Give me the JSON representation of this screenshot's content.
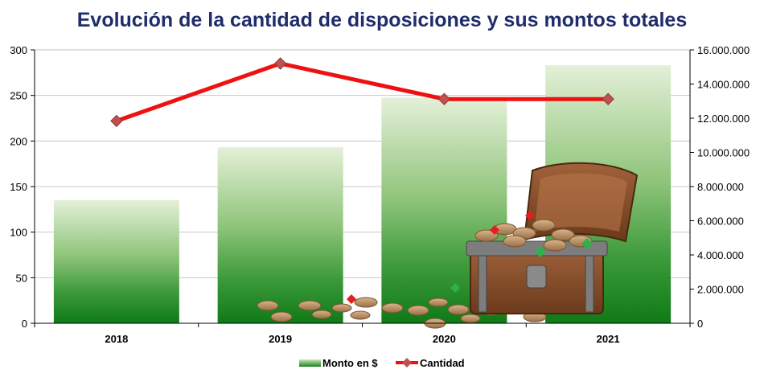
{
  "chart_data": {
    "type": "bar",
    "title": "Evolución de la cantidad de disposiciones y sus montos totales",
    "categories": [
      "2018",
      "2019",
      "2020",
      "2021"
    ],
    "left_axis": {
      "range": [
        0,
        300
      ],
      "ticks": [
        0,
        50,
        100,
        150,
        200,
        250,
        300
      ],
      "tick_labels": [
        "0",
        "50",
        "100",
        "150",
        "200",
        "250",
        "300"
      ]
    },
    "right_axis": {
      "range": [
        0,
        16000000
      ],
      "ticks": [
        0,
        2000000,
        4000000,
        6000000,
        8000000,
        10000000,
        12000000,
        14000000,
        16000000
      ],
      "tick_labels": [
        "0",
        "2.000.000",
        "4.000.000",
        "6.000.000",
        "8.000.000",
        "10.000.000",
        "12.000.000",
        "14.000.000",
        "16.000.000"
      ]
    },
    "series": [
      {
        "name": "Monto en $",
        "type": "bar",
        "axis": "right",
        "values": [
          7200000,
          10300000,
          13200000,
          15100000
        ],
        "color": "#2e8b2e"
      },
      {
        "name": "Cantidad",
        "type": "line",
        "axis": "left",
        "values": [
          222,
          285,
          246,
          246
        ],
        "color": "#ee1111",
        "marker_color": "#c0504d"
      }
    ],
    "grid": true,
    "legend": "bottom",
    "decoration": "treasure-chest-with-coins"
  }
}
